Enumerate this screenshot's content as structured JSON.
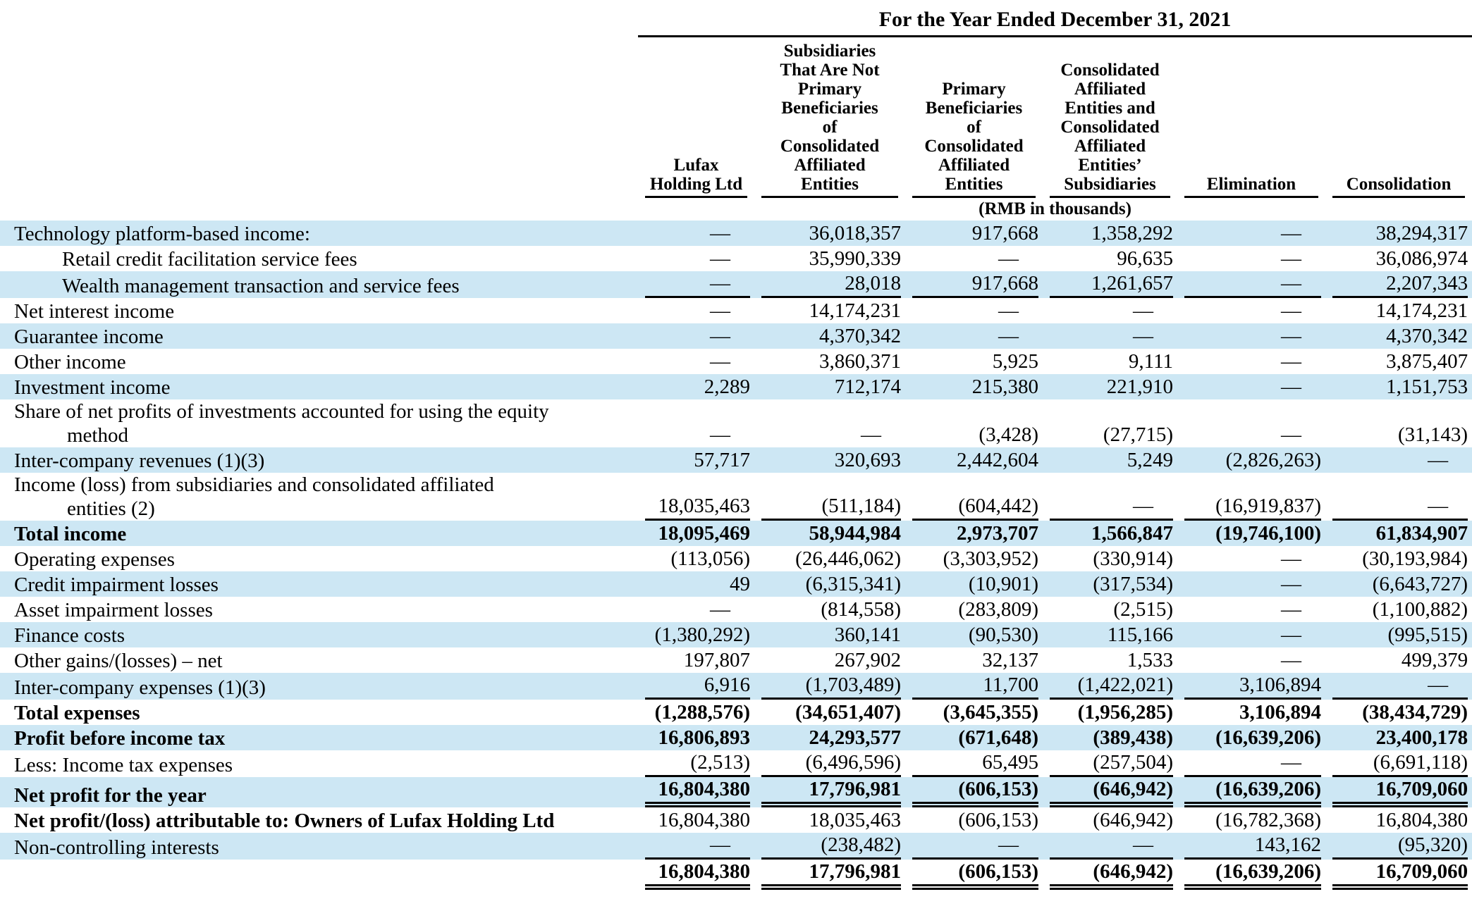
{
  "colors": {
    "row_shade": "#cde7f4"
  },
  "document": {
    "period_header": "For the Year Ended December 31, 2021",
    "unit_note": "(RMB in thousands)",
    "columns": [
      {
        "lines": [
          "Lufax",
          "Holding Ltd"
        ]
      },
      {
        "lines": [
          "Subsidiaries",
          "That Are Not",
          "Primary",
          "Beneficiaries",
          "of",
          "Consolidated",
          "Affiliated",
          "Entities"
        ]
      },
      {
        "lines": [
          "Primary",
          "Beneficiaries",
          "of",
          "Consolidated",
          "Affiliated",
          "Entities"
        ]
      },
      {
        "lines": [
          "Consolidated",
          "Affiliated",
          "Entities and",
          "Consolidated",
          "Affiliated",
          "Entities’",
          "Subsidiaries"
        ]
      },
      {
        "lines": [
          "Elimination"
        ]
      },
      {
        "lines": [
          "Consolidation"
        ]
      }
    ],
    "rows": [
      {
        "label": "Technology platform-based income:",
        "cells": [
          "—",
          "36,018,357",
          "917,668",
          "1,358,292",
          "—",
          "38,294,317"
        ]
      },
      {
        "label": "Retail credit facilitation service fees",
        "indent": true,
        "cells": [
          "—",
          "35,990,339",
          "—",
          "96,635",
          "—",
          "36,086,974"
        ]
      },
      {
        "label": "Wealth management transaction and service fees",
        "indent": true,
        "underline": "single",
        "cells": [
          "—",
          "28,018",
          "917,668",
          "1,261,657",
          "—",
          "2,207,343"
        ]
      },
      {
        "label": "Net interest income",
        "cells": [
          "—",
          "14,174,231",
          "—",
          "—",
          "—",
          "14,174,231"
        ]
      },
      {
        "label": "Guarantee income",
        "cells": [
          "—",
          "4,370,342",
          "—",
          "—",
          "—",
          "4,370,342"
        ]
      },
      {
        "label": "Other income",
        "cells": [
          "—",
          "3,860,371",
          "5,925",
          "9,111",
          "—",
          "3,875,407"
        ]
      },
      {
        "label": "Investment income",
        "cells": [
          "2,289",
          "712,174",
          "215,380",
          "221,910",
          "—",
          "1,151,753"
        ]
      },
      {
        "label": "Share of net profits of investments accounted for using the equity\nmethod",
        "cells": [
          "—",
          "—",
          "(3,428)",
          "(27,715)",
          "—",
          "(31,143)"
        ]
      },
      {
        "label": "Inter-company revenues (1)(3)",
        "cells": [
          "57,717",
          "320,693",
          "2,442,604",
          "5,249",
          "(2,826,263)",
          "—"
        ]
      },
      {
        "label": "Income (loss) from subsidiaries and consolidated affiliated\nentities (2)",
        "underline": "single",
        "cells": [
          "18,035,463",
          "(511,184)",
          "(604,442)",
          "—",
          "(16,919,837)",
          "—"
        ]
      },
      {
        "label": "Total income",
        "bold": true,
        "cells": [
          "18,095,469",
          "58,944,984",
          "2,973,707",
          "1,566,847",
          "(19,746,100)",
          "61,834,907"
        ]
      },
      {
        "label": "Operating expenses",
        "cells": [
          "(113,056)",
          "(26,446,062)",
          "(3,303,952)",
          "(330,914)",
          "—",
          "(30,193,984)"
        ]
      },
      {
        "label": "Credit impairment losses",
        "cells": [
          "49",
          "(6,315,341)",
          "(10,901)",
          "(317,534)",
          "—",
          "(6,643,727)"
        ]
      },
      {
        "label": "Asset impairment losses",
        "cells": [
          "—",
          "(814,558)",
          "(283,809)",
          "(2,515)",
          "—",
          "(1,100,882)"
        ]
      },
      {
        "label": "Finance costs",
        "cells": [
          "(1,380,292)",
          "360,141",
          "(90,530)",
          "115,166",
          "—",
          "(995,515)"
        ]
      },
      {
        "label": "Other gains/(losses) – net",
        "cells": [
          "197,807",
          "267,902",
          "32,137",
          "1,533",
          "—",
          "499,379"
        ]
      },
      {
        "label": "Inter-company expenses (1)(3)",
        "underline": "single",
        "cells": [
          "6,916",
          "(1,703,489)",
          "11,700",
          "(1,422,021)",
          "3,106,894",
          "—"
        ]
      },
      {
        "label": "Total expenses",
        "bold": true,
        "cells": [
          "(1,288,576)",
          "(34,651,407)",
          "(3,645,355)",
          "(1,956,285)",
          "3,106,894",
          "(38,434,729)"
        ]
      },
      {
        "label": "Profit before income tax",
        "bold": true,
        "cells": [
          "16,806,893",
          "24,293,577",
          "(671,648)",
          "(389,438)",
          "(16,639,206)",
          "23,400,178"
        ]
      },
      {
        "label": "Less: Income tax expenses",
        "underline": "single",
        "cells": [
          "(2,513)",
          "(6,496,596)",
          "65,495",
          "(257,504)",
          "—",
          "(6,691,118)"
        ]
      },
      {
        "label": "Net profit for the year",
        "bold": true,
        "underline": "double",
        "cells": [
          "16,804,380",
          "17,796,981",
          "(606,153)",
          "(646,942)",
          "(16,639,206)",
          "16,709,060"
        ]
      },
      {
        "label": "Net profit/(loss) attributable to: Owners of Lufax Holding Ltd",
        "label_bold": true,
        "cells": [
          "16,804,380",
          "18,035,463",
          "(606,153)",
          "(646,942)",
          "(16,782,368)",
          "16,804,380"
        ]
      },
      {
        "label": "Non-controlling interests",
        "underline": "single",
        "cells": [
          "—",
          "(238,482)",
          "—",
          "—",
          "143,162",
          "(95,320)"
        ]
      },
      {
        "label": "",
        "bold": true,
        "underline": "double",
        "cells": [
          "16,804,380",
          "17,796,981",
          "(606,153)",
          "(646,942)",
          "(16,639,206)",
          "16,709,060"
        ]
      }
    ]
  }
}
